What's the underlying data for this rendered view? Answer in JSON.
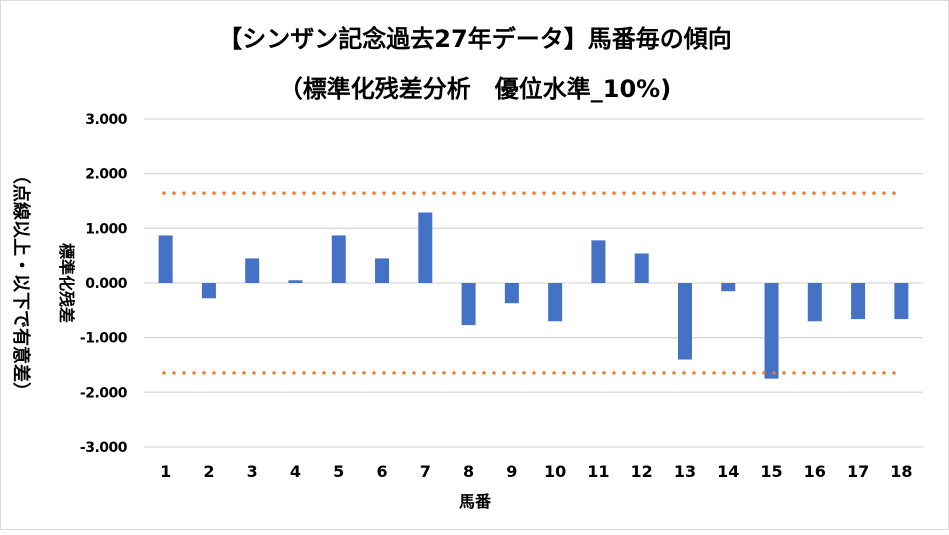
{
  "chart_data": {
    "type": "bar",
    "title": "【シンザン記念過去27年データ】馬番毎の傾向",
    "subtitle": "（標準化残差分析　優位水準_10%)",
    "xlabel": "馬番",
    "ylabel": "標準化残差",
    "ylabel2": "（点線以上・以下で有意差）",
    "categories": [
      "1",
      "2",
      "3",
      "4",
      "5",
      "6",
      "7",
      "8",
      "9",
      "10",
      "11",
      "12",
      "13",
      "14",
      "15",
      "16",
      "17",
      "18"
    ],
    "values": [
      0.87,
      -0.28,
      0.45,
      0.05,
      0.87,
      0.45,
      1.29,
      -0.77,
      -0.37,
      -0.7,
      0.78,
      0.54,
      -1.4,
      -0.15,
      -1.75,
      -0.7,
      -0.66,
      -0.66
    ],
    "ylim": [
      -3,
      3
    ],
    "yticks": [
      "3.000",
      "2.000",
      "1.000",
      "0.000",
      "-1.000",
      "-2.000",
      "-3.000"
    ],
    "ytick_values": [
      3,
      2,
      1,
      0,
      -1,
      -2,
      -3
    ],
    "thresholds": [
      1.645,
      -1.645
    ],
    "grid": true,
    "legend": "none",
    "colors": {
      "bar": "#4472c4",
      "threshold": "#ed7d31",
      "grid": "#d9d9d9"
    }
  }
}
